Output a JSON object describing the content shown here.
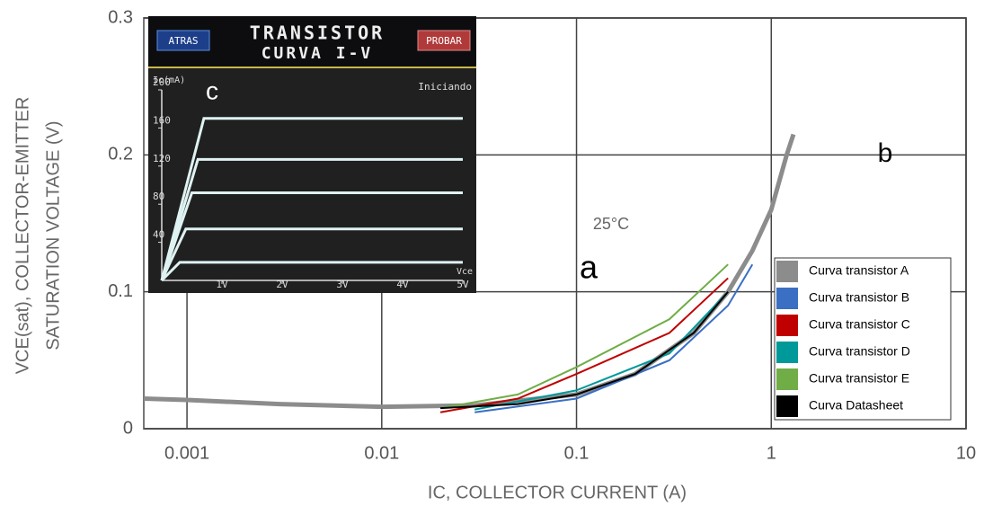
{
  "chart_data": [
    {
      "type": "line",
      "xscale": "log",
      "xlabel": "IC, COLLECTOR CURRENT (A)",
      "ylabel": [
        "VCE(sat), COLLECTOR-EMITTER",
        "SATURATION VOLTAGE (V)"
      ],
      "annotations": [
        "25°C",
        "a",
        "b"
      ],
      "xlim": [
        0.0006,
        10
      ],
      "xticks": [
        0.001,
        0.01,
        0.1,
        1,
        10
      ],
      "ylim": [
        0,
        0.3
      ],
      "yticks": [
        0,
        0.1,
        0.2,
        0.3
      ],
      "grid": true,
      "legend": "lower right",
      "series": [
        {
          "name": "Curva transistor A",
          "color": "#8c8c8c",
          "x": [
            0.0006,
            0.001,
            0.003,
            0.01,
            0.03,
            0.1,
            0.2,
            0.4,
            0.6,
            0.8,
            1,
            1.2,
            1.3
          ],
          "values": [
            0.022,
            0.021,
            0.018,
            0.016,
            0.017,
            0.025,
            0.04,
            0.07,
            0.1,
            0.13,
            0.16,
            0.2,
            0.215
          ]
        },
        {
          "name": "Curva transistor B",
          "color": "#3a6fc4",
          "x": [
            0.03,
            0.1,
            0.3,
            0.6,
            0.8
          ],
          "values": [
            0.012,
            0.022,
            0.05,
            0.09,
            0.12
          ]
        },
        {
          "name": "Curva transistor C",
          "color": "#c00000",
          "x": [
            0.02,
            0.05,
            0.1,
            0.3,
            0.6
          ],
          "values": [
            0.012,
            0.022,
            0.04,
            0.07,
            0.11
          ]
        },
        {
          "name": "Curva transistor D",
          "color": "#009999",
          "x": [
            0.03,
            0.1,
            0.3,
            0.6
          ],
          "values": [
            0.014,
            0.028,
            0.055,
            0.1
          ]
        },
        {
          "name": "Curva transistor E",
          "color": "#70ad47",
          "x": [
            0.02,
            0.05,
            0.1,
            0.3,
            0.6
          ],
          "values": [
            0.015,
            0.025,
            0.045,
            0.08,
            0.12
          ]
        },
        {
          "name": "Curva Datasheet",
          "color": "#000000",
          "x": [
            0.02,
            0.05,
            0.1,
            0.2,
            0.4,
            0.6
          ],
          "values": [
            0.015,
            0.018,
            0.025,
            0.04,
            0.07,
            0.1
          ]
        }
      ]
    },
    {
      "type": "line",
      "title": "TRANSISTOR",
      "subtitle": "CURVA I-V",
      "buttons": [
        "ATRAS",
        "PROBAR"
      ],
      "status": "Iniciando",
      "annotation": "c",
      "ylabel": "Ic(mA)",
      "xlabel": "Vce",
      "xlim": [
        0,
        5
      ],
      "xticks": [
        {
          "value": 1,
          "label": "1V"
        },
        {
          "value": 2,
          "label": "2V"
        },
        {
          "value": 3,
          "label": "3V"
        },
        {
          "value": 4,
          "label": "4V"
        },
        {
          "value": 5,
          "label": "5V"
        }
      ],
      "ylim": [
        0,
        200
      ],
      "yticks": [
        40,
        80,
        120,
        160,
        200
      ],
      "series": [
        {
          "color": "#dff2f2",
          "x": [
            0,
            0.7,
            5
          ],
          "values": [
            0,
            170,
            170
          ]
        },
        {
          "color": "#dff2f2",
          "x": [
            0,
            0.6,
            5
          ],
          "values": [
            0,
            127,
            127
          ]
        },
        {
          "color": "#dff2f2",
          "x": [
            0,
            0.5,
            5
          ],
          "values": [
            0,
            92,
            92
          ]
        },
        {
          "color": "#dff2f2",
          "x": [
            0,
            0.4,
            5
          ],
          "values": [
            0,
            54,
            54
          ]
        },
        {
          "color": "#dff2f2",
          "x": [
            0,
            0.3,
            5
          ],
          "values": [
            0,
            19,
            19
          ]
        }
      ]
    }
  ]
}
